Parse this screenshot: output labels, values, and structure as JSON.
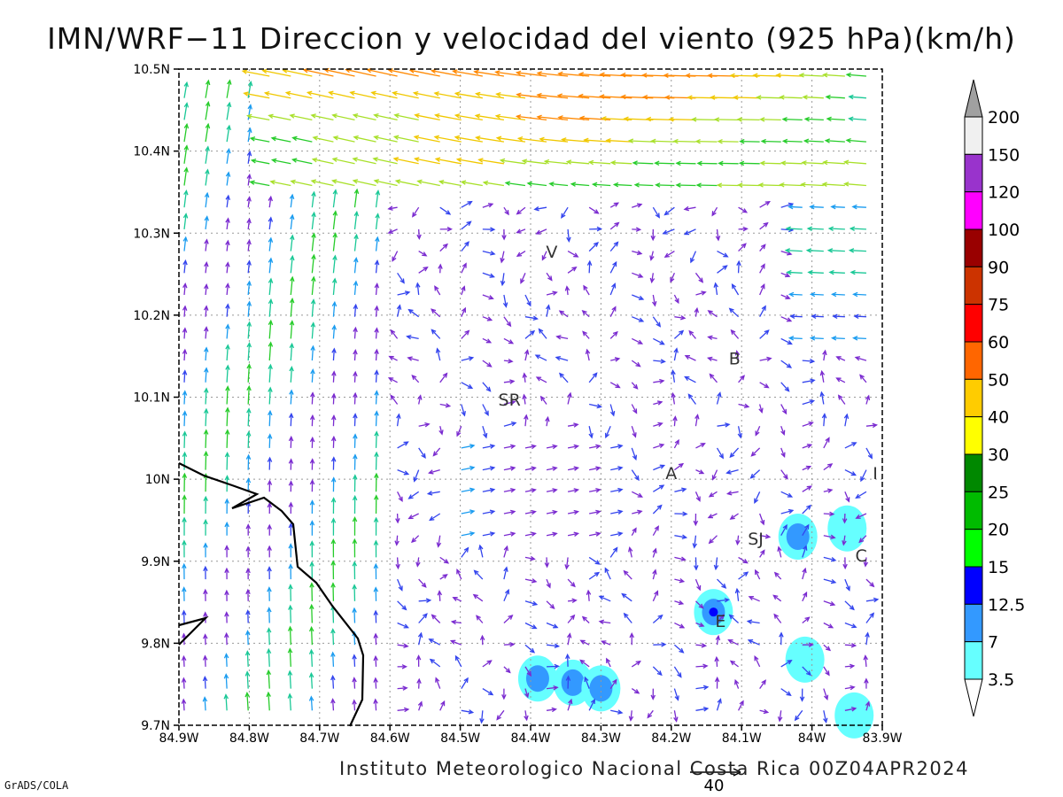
{
  "title": "IMN/WRF−11 Direccion y velocidad del viento (925 hPa)(km/h)",
  "footer": "Instituto Meteorologico Nacional Costa Rica 00Z04APR2024",
  "credit": "GrADS/COLA",
  "reference_vector": {
    "label": "40",
    "speed_kmh": 40
  },
  "map": {
    "lat_range": [
      9.7,
      10.5
    ],
    "lon_range": [
      -84.9,
      -83.9
    ],
    "y_ticks": [
      "9.7N",
      "9.8N",
      "9.9N",
      "10N",
      "10.1N",
      "10.2N",
      "10.3N",
      "10.4N",
      "10.5N"
    ],
    "x_ticks": [
      "84.9W",
      "84.8W",
      "84.7W",
      "84.6W",
      "84.5W",
      "84.4W",
      "84.3W",
      "84.2W",
      "84.1W",
      "84W",
      "83.9W"
    ],
    "grid": "dotted",
    "cities": [
      {
        "label": "V",
        "lon": -84.37,
        "lat": 10.27
      },
      {
        "label": "B",
        "lon": -84.11,
        "lat": 10.14
      },
      {
        "label": "SR",
        "lon": -84.43,
        "lat": 10.09
      },
      {
        "label": "A",
        "lon": -84.2,
        "lat": 10.0
      },
      {
        "label": "I",
        "lon": -83.91,
        "lat": 10.0
      },
      {
        "label": "SJ",
        "lon": -84.08,
        "lat": 9.92
      },
      {
        "label": "C",
        "lon": -83.93,
        "lat": 9.9
      },
      {
        "label": "E",
        "lon": -84.13,
        "lat": 9.82
      }
    ],
    "calm_patches": [
      {
        "lon": -84.39,
        "lat": 9.757,
        "level": "7"
      },
      {
        "lon": -84.34,
        "lat": 9.752,
        "level": "7"
      },
      {
        "lon": -84.3,
        "lat": 9.745,
        "level": "7"
      },
      {
        "lon": -84.14,
        "lat": 9.838,
        "level": "12.5"
      },
      {
        "lon": -84.02,
        "lat": 9.93,
        "level": "7"
      },
      {
        "lon": -83.95,
        "lat": 9.94,
        "level": "3.5"
      },
      {
        "lon": -84.01,
        "lat": 9.78,
        "level": "3.5"
      },
      {
        "lon": -83.94,
        "lat": 9.712,
        "level": "3.5"
      }
    ]
  },
  "colorbar": {
    "levels": [
      "200",
      "150",
      "120",
      "100",
      "90",
      "75",
      "60",
      "50",
      "40",
      "30",
      "25",
      "20",
      "15",
      "12.5",
      "7",
      "3.5"
    ],
    "colors": [
      "#a0a0a0",
      "#f0f0f0",
      "#9933cc",
      "#ff00ff",
      "#990000",
      "#cc3300",
      "#ff0000",
      "#ff6600",
      "#ffcc00",
      "#ffff00",
      "#008800",
      "#00bb00",
      "#00ff00",
      "#0000ff",
      "#3399ff",
      "#66ffff"
    ]
  }
}
